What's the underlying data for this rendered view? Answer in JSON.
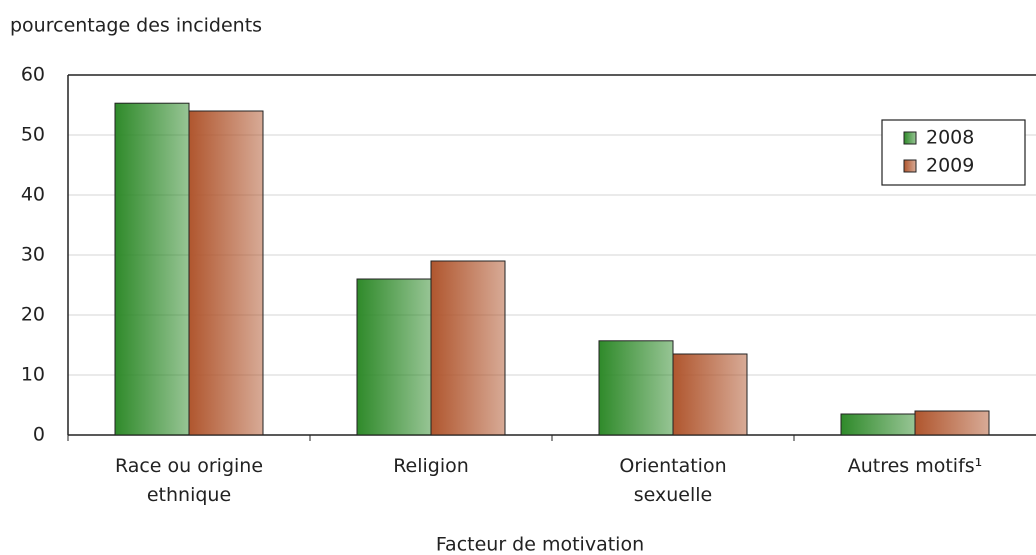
{
  "chart_data": {
    "type": "bar",
    "ylabel": "pourcentage des incidents",
    "xlabel": "Facteur de motivation",
    "categories": [
      "Race ou origine ethnique",
      "Religion",
      "Orientation sexuelle",
      "Autres motifs¹"
    ],
    "series": [
      {
        "name": "2008",
        "color": "#2f8a2a",
        "values": [
          55.3,
          26,
          15.7,
          3.5
        ]
      },
      {
        "name": "2009",
        "color": "#b0562e",
        "values": [
          54,
          29,
          13.5,
          4
        ]
      }
    ],
    "ylim": [
      0,
      60
    ],
    "yticks": [
      0,
      10,
      20,
      30,
      40,
      50,
      60
    ],
    "grid": true,
    "legend": "top-right"
  }
}
